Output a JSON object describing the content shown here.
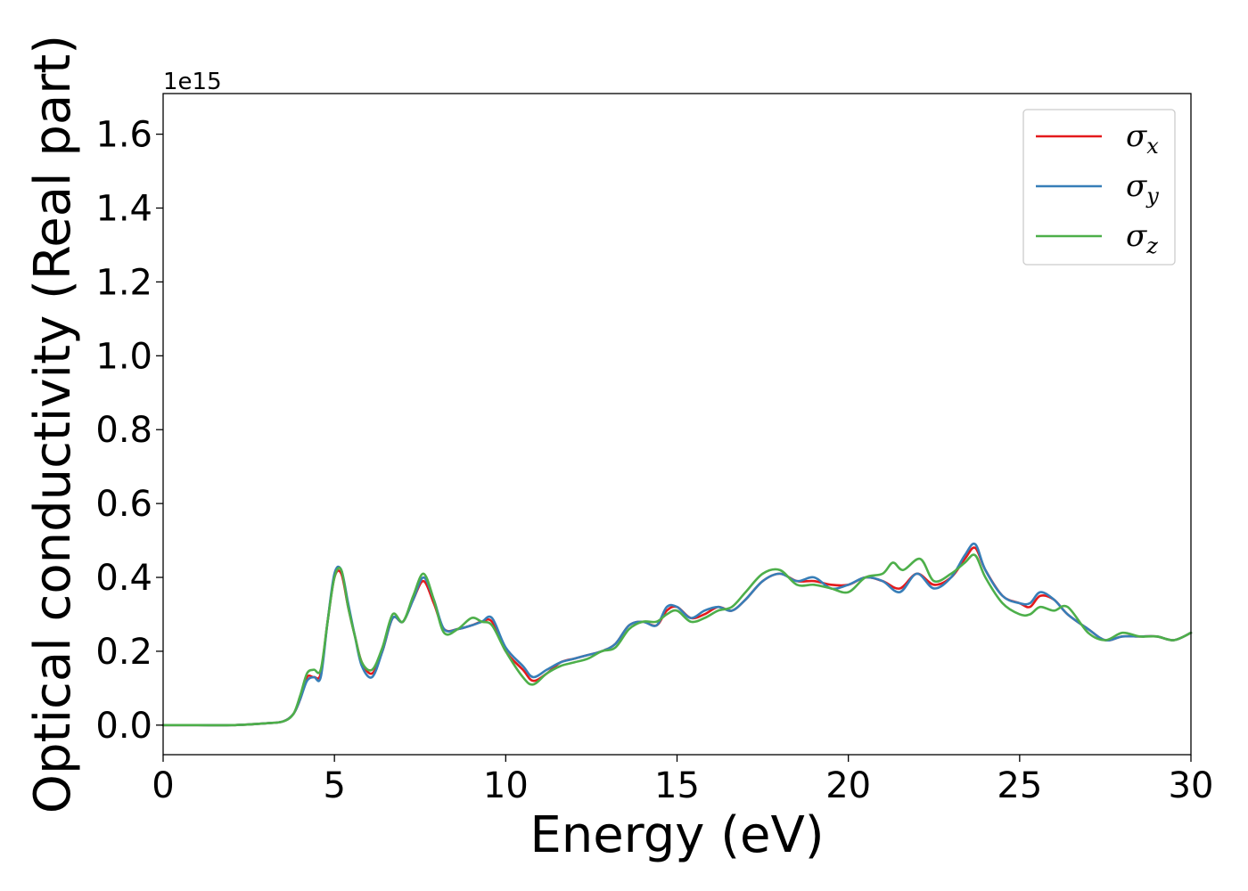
{
  "chart_data": {
    "type": "line",
    "title": "",
    "xlabel": "Energy (eV)",
    "ylabel": "Optical conductivity (Real part)",
    "y_offset_label": "1e15",
    "xlim": [
      0,
      30
    ],
    "ylim": [
      -0.08,
      1.71
    ],
    "xticks": [
      0,
      5,
      10,
      15,
      20,
      25,
      30
    ],
    "yticks": [
      0.0,
      0.2,
      0.4,
      0.6,
      0.8,
      1.0,
      1.2,
      1.4,
      1.6
    ],
    "xtick_labels": [
      "0",
      "5",
      "10",
      "15",
      "20",
      "25",
      "30"
    ],
    "ytick_labels": [
      "0.0",
      "0.2",
      "0.4",
      "0.6",
      "0.8",
      "1.0",
      "1.2",
      "1.4",
      "1.6"
    ],
    "grid": false,
    "legend_position": "top-right",
    "series": [
      {
        "name": "σx",
        "symbol": "σ",
        "subscript": "x",
        "color": "#e41a1c",
        "x": [
          0,
          1,
          2,
          3,
          3.5,
          3.8,
          4.0,
          4.2,
          4.4,
          4.6,
          4.8,
          5.0,
          5.2,
          5.4,
          5.6,
          5.8,
          6.1,
          6.4,
          6.7,
          7.0,
          7.3,
          7.6,
          7.9,
          8.2,
          8.6,
          9.0,
          9.3,
          9.6,
          10.0,
          10.5,
          10.8,
          11.2,
          11.6,
          12.0,
          12.4,
          12.8,
          13.2,
          13.6,
          14.0,
          14.4,
          14.7,
          15.0,
          15.4,
          15.8,
          16.2,
          16.6,
          17.0,
          17.5,
          18.0,
          18.5,
          19.0,
          19.5,
          20.0,
          20.5,
          21.0,
          21.5,
          22.0,
          22.5,
          23.0,
          23.4,
          23.7,
          24.0,
          24.5,
          25.0,
          25.3,
          25.6,
          26.0,
          26.4,
          27.0,
          27.5,
          28.0,
          28.5,
          29.0,
          29.5,
          30.0
        ],
        "values": [
          0.0,
          0.0,
          0.0,
          0.005,
          0.01,
          0.03,
          0.07,
          0.13,
          0.13,
          0.14,
          0.28,
          0.4,
          0.41,
          0.32,
          0.24,
          0.17,
          0.14,
          0.2,
          0.29,
          0.28,
          0.34,
          0.39,
          0.33,
          0.26,
          0.26,
          0.27,
          0.28,
          0.28,
          0.2,
          0.15,
          0.12,
          0.14,
          0.17,
          0.18,
          0.19,
          0.2,
          0.22,
          0.27,
          0.28,
          0.27,
          0.31,
          0.32,
          0.29,
          0.3,
          0.32,
          0.31,
          0.34,
          0.39,
          0.41,
          0.39,
          0.39,
          0.38,
          0.38,
          0.4,
          0.39,
          0.37,
          0.41,
          0.38,
          0.4,
          0.45,
          0.48,
          0.42,
          0.35,
          0.33,
          0.32,
          0.35,
          0.34,
          0.3,
          0.26,
          0.23,
          0.24,
          0.24,
          0.24,
          0.23,
          0.25
        ]
      },
      {
        "name": "σy",
        "symbol": "σ",
        "subscript": "y",
        "color": "#377eb8",
        "x": [
          0,
          1,
          2,
          3,
          3.5,
          3.8,
          4.0,
          4.2,
          4.4,
          4.6,
          4.8,
          5.0,
          5.2,
          5.4,
          5.6,
          5.8,
          6.1,
          6.4,
          6.7,
          7.0,
          7.3,
          7.6,
          7.9,
          8.2,
          8.6,
          9.0,
          9.3,
          9.6,
          10.0,
          10.5,
          10.8,
          11.2,
          11.6,
          12.0,
          12.4,
          12.8,
          13.2,
          13.6,
          14.0,
          14.4,
          14.7,
          15.0,
          15.4,
          15.8,
          16.2,
          16.6,
          17.0,
          17.5,
          18.0,
          18.5,
          19.0,
          19.5,
          20.0,
          20.5,
          21.0,
          21.5,
          22.0,
          22.5,
          23.0,
          23.4,
          23.7,
          24.0,
          24.5,
          25.0,
          25.3,
          25.6,
          26.0,
          26.4,
          27.0,
          27.5,
          28.0,
          28.5,
          29.0,
          29.5,
          30.0
        ],
        "values": [
          0.0,
          0.0,
          0.0,
          0.005,
          0.01,
          0.03,
          0.07,
          0.12,
          0.13,
          0.13,
          0.28,
          0.41,
          0.42,
          0.33,
          0.24,
          0.16,
          0.13,
          0.2,
          0.29,
          0.28,
          0.34,
          0.4,
          0.34,
          0.26,
          0.26,
          0.27,
          0.28,
          0.29,
          0.21,
          0.16,
          0.13,
          0.15,
          0.17,
          0.18,
          0.19,
          0.2,
          0.22,
          0.27,
          0.28,
          0.27,
          0.32,
          0.32,
          0.29,
          0.31,
          0.32,
          0.31,
          0.34,
          0.39,
          0.41,
          0.39,
          0.4,
          0.37,
          0.38,
          0.4,
          0.39,
          0.36,
          0.41,
          0.37,
          0.4,
          0.46,
          0.49,
          0.42,
          0.35,
          0.33,
          0.33,
          0.36,
          0.34,
          0.3,
          0.26,
          0.23,
          0.24,
          0.24,
          0.24,
          0.23,
          0.25
        ]
      },
      {
        "name": "σz",
        "symbol": "σ",
        "subscript": "z",
        "color": "#4daf4a",
        "x": [
          0,
          1,
          2,
          3,
          3.5,
          3.8,
          4.0,
          4.2,
          4.4,
          4.6,
          4.8,
          5.0,
          5.2,
          5.4,
          5.6,
          5.8,
          6.1,
          6.4,
          6.7,
          7.0,
          7.3,
          7.6,
          7.9,
          8.2,
          8.6,
          9.0,
          9.3,
          9.6,
          10.0,
          10.5,
          10.8,
          11.2,
          11.6,
          12.0,
          12.4,
          12.8,
          13.2,
          13.6,
          14.0,
          14.4,
          14.7,
          15.0,
          15.4,
          15.8,
          16.2,
          16.6,
          17.0,
          17.5,
          18.0,
          18.5,
          19.0,
          19.5,
          20.0,
          20.5,
          21.0,
          21.3,
          21.6,
          22.1,
          22.5,
          23.0,
          23.4,
          23.7,
          24.0,
          24.5,
          25.0,
          25.3,
          25.6,
          26.0,
          26.4,
          27.0,
          27.5,
          28.0,
          28.5,
          29.0,
          29.5,
          30.0
        ],
        "values": [
          0.0,
          0.0,
          0.0,
          0.005,
          0.01,
          0.03,
          0.08,
          0.14,
          0.15,
          0.15,
          0.28,
          0.4,
          0.42,
          0.32,
          0.24,
          0.17,
          0.15,
          0.21,
          0.3,
          0.28,
          0.35,
          0.41,
          0.34,
          0.25,
          0.26,
          0.29,
          0.28,
          0.27,
          0.2,
          0.13,
          0.11,
          0.14,
          0.16,
          0.17,
          0.18,
          0.2,
          0.21,
          0.26,
          0.28,
          0.28,
          0.3,
          0.31,
          0.28,
          0.29,
          0.31,
          0.32,
          0.36,
          0.41,
          0.42,
          0.38,
          0.38,
          0.37,
          0.36,
          0.4,
          0.41,
          0.44,
          0.42,
          0.45,
          0.39,
          0.41,
          0.44,
          0.46,
          0.4,
          0.33,
          0.3,
          0.3,
          0.32,
          0.31,
          0.32,
          0.25,
          0.23,
          0.25,
          0.24,
          0.24,
          0.23,
          0.25
        ]
      }
    ]
  }
}
